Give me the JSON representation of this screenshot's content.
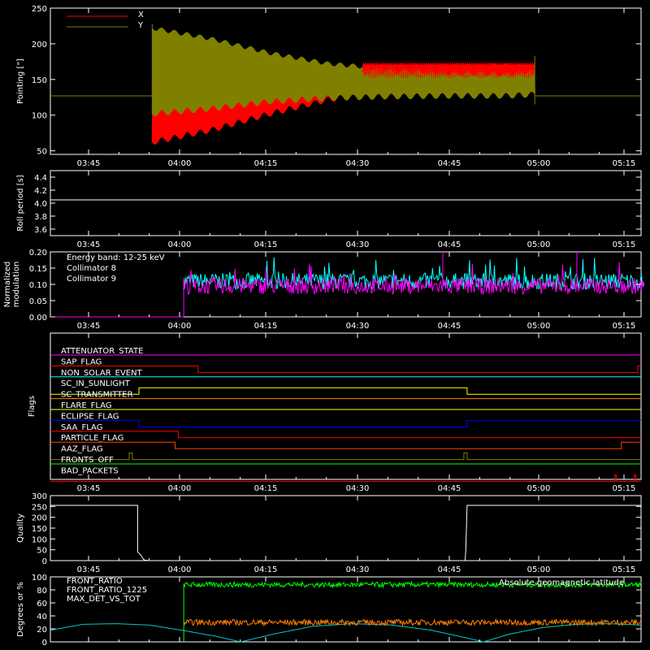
{
  "chart_data": [
    {
      "id": "pointing",
      "type": "line",
      "ylabel": "Pointing [\"]",
      "ylim": [
        45,
        250
      ],
      "yticks": [
        50,
        100,
        150,
        200,
        250
      ],
      "xlim_minutes": [
        3.2,
        79.5
      ],
      "xticks": [
        "03:45",
        "04:00",
        "04:15",
        "04:30",
        "04:45",
        "05:00",
        "05:15"
      ],
      "legend_position": "top-left",
      "series": [
        {
          "name": "X",
          "color": "#ff0000",
          "baseline": 127,
          "active": [
            "03:55",
            "05:00"
          ],
          "envelope_min": [
            [
              0,
              58
            ],
            [
              10,
              75
            ],
            [
              20,
              98
            ],
            [
              30,
              118
            ],
            [
              40,
              130
            ],
            [
              50,
              133
            ],
            [
              60,
              128
            ],
            [
              65,
              126
            ]
          ],
          "envelope_max": [
            [
              0,
              140
            ],
            [
              10,
              145
            ],
            [
              20,
              155
            ],
            [
              30,
              165
            ],
            [
              40,
              170
            ],
            [
              50,
              172
            ],
            [
              60,
              172
            ],
            [
              65,
              170
            ]
          ]
        },
        {
          "name": "Y",
          "color": "#808000",
          "baseline": 127,
          "active": [
            "03:55",
            "05:00"
          ],
          "envelope_min": [
            [
              0,
              98
            ],
            [
              10,
              105
            ],
            [
              20,
              115
            ],
            [
              30,
              120
            ],
            [
              40,
              122
            ],
            [
              50,
              123
            ],
            [
              60,
              123
            ],
            [
              65,
              125
            ]
          ],
          "envelope_max": [
            [
              0,
              225
            ],
            [
              10,
              210
            ],
            [
              20,
              190
            ],
            [
              30,
              175
            ],
            [
              40,
              168
            ],
            [
              50,
              162
            ],
            [
              60,
              160
            ],
            [
              65,
              165
            ]
          ]
        }
      ]
    },
    {
      "id": "roll",
      "type": "line",
      "ylabel": "Roll period [s]",
      "ylim": [
        3.5,
        4.5
      ],
      "yticks": [
        "3.6",
        "3.8",
        "4.0",
        "4.2",
        "4.4"
      ],
      "xticks": [
        "03:45",
        "04:00",
        "04:15",
        "04:30",
        "04:45",
        "05:00",
        "05:15"
      ],
      "series": [
        {
          "name": "",
          "color": "#ffffff",
          "values_constant": 4.05
        }
      ]
    },
    {
      "id": "modulation",
      "type": "line",
      "ylabel_line1": "Normalized",
      "ylabel_line2": "modulation",
      "ylim": [
        0,
        0.2
      ],
      "yticks": [
        "0.00",
        "0.05",
        "0.10",
        "0.15",
        "0.20"
      ],
      "xticks": [
        "03:45",
        "04:00",
        "04:15",
        "04:30",
        "04:45",
        "05:00",
        "05:15"
      ],
      "annotation": "Energy band: 12-25 keV",
      "series": [
        {
          "name": "Collimator 8",
          "color": "#00ffff",
          "mean": 0.11,
          "active": [
            "04:01",
            "05:17"
          ]
        },
        {
          "name": "Collimator 9",
          "color": "#ff00ff",
          "mean": 0.095,
          "active": [
            "04:01",
            "05:17"
          ]
        }
      ]
    },
    {
      "id": "flags",
      "type": "line",
      "ylabel": "Flags",
      "xticks": [
        "03:45",
        "04:00",
        "04:15",
        "04:30",
        "04:45",
        "05:00",
        "05:15"
      ],
      "series": [
        {
          "name": "ATTENUATOR_STATE",
          "color": "#ff00ff",
          "transitions": []
        },
        {
          "name": "SAP_FLAG",
          "color": "#ff0000",
          "transitions": [
            [
              0,
              1
            ],
            [
              22.5,
              0
            ],
            [
              89.5,
              1
            ]
          ]
        },
        {
          "name": "NON_SOLAR_EVENT",
          "color": "#00ffff",
          "transitions": []
        },
        {
          "name": "SC_IN_SUNLIGHT",
          "color": "#ffff00",
          "transitions": [
            [
              0,
              0
            ],
            [
              13.5,
              1
            ],
            [
              63.5,
              0
            ]
          ]
        },
        {
          "name": "SC_TRANSMITTER",
          "color": "#ff8000",
          "transitions": []
        },
        {
          "name": "FLARE_FLAG",
          "color": "#ffff00",
          "transitions": []
        },
        {
          "name": "ECLIPSE_FLAG",
          "color": "#0000ff",
          "transitions": [
            [
              0,
              1
            ],
            [
              13.5,
              0
            ],
            [
              63.5,
              1
            ]
          ]
        },
        {
          "name": "SAA_FLAG",
          "color": "#ff0000",
          "transitions": [
            [
              0,
              1
            ],
            [
              19.5,
              0
            ]
          ]
        },
        {
          "name": "PARTICLE_FLAG",
          "color": "#ff4000",
          "transitions": [
            [
              0,
              1
            ],
            [
              19.0,
              0
            ],
            [
              87.0,
              1
            ]
          ]
        },
        {
          "name": "AAZ_FLAG",
          "color": "#808000",
          "transitions": [
            [
              0,
              0
            ],
            [
              12.0,
              1
            ],
            [
              12.5,
              0
            ],
            [
              63.0,
              1
            ],
            [
              63.5,
              0
            ]
          ]
        },
        {
          "name": "FRONTS_OFF",
          "color": "#00ff00",
          "transitions": []
        },
        {
          "name": "BAD_PACKETS",
          "color": "#ff0000",
          "transitions": [
            [
              0,
              0
            ],
            [
              86.0,
              1
            ],
            [
              86.2,
              0
            ],
            [
              89.0,
              1
            ],
            [
              89.2,
              0
            ]
          ]
        }
      ]
    },
    {
      "id": "quality",
      "type": "line",
      "ylabel": "Quality",
      "ylim": [
        0,
        300
      ],
      "yticks": [
        "0",
        "50",
        "100",
        "150",
        "200",
        "250",
        "300"
      ],
      "xticks": [
        "03:45",
        "04:00",
        "04:15",
        "04:30",
        "04:45",
        "05:00",
        "05:15"
      ],
      "series": [
        {
          "name": "",
          "color": "#ffffff",
          "points": [
            [
              0,
              255
            ],
            [
              13.3,
              255
            ],
            [
              13.3,
              40
            ],
            [
              13.8,
              25
            ],
            [
              14.2,
              5
            ],
            [
              14.5,
              2
            ],
            [
              15,
              0
            ],
            [
              63.2,
              0
            ],
            [
              63.3,
              50
            ],
            [
              63.5,
              255
            ],
            [
              90,
              255
            ]
          ]
        }
      ]
    },
    {
      "id": "front_ratio",
      "type": "line",
      "ylabel": "Degrees or %",
      "ylim": [
        0,
        100
      ],
      "yticks": [
        "0",
        "20",
        "40",
        "60",
        "80",
        "100"
      ],
      "annotation_right": "Absolute geomagnetic latitude",
      "series": [
        {
          "name": "FRONT_RATIO",
          "color": "#ffff00",
          "active": []
        },
        {
          "name": "FRONT_RATIO_1225",
          "color": "#00ff00",
          "mean": 88,
          "active": [
            "04:01",
            "05:17"
          ]
        },
        {
          "name": "MAX_DET_VS_TOT",
          "color": "#ff8000",
          "mean": 30,
          "active": [
            "04:01",
            "05:17"
          ]
        },
        {
          "name": "",
          "color": "#00c8c8",
          "latitude_points": [
            [
              0,
              18
            ],
            [
              5,
              27
            ],
            [
              10,
              28
            ],
            [
              15,
              26
            ],
            [
              20,
              18
            ],
            [
              25,
              9
            ],
            [
              29,
              0
            ],
            [
              34,
              12
            ],
            [
              40,
              24
            ],
            [
              46,
              28
            ],
            [
              52,
              26
            ],
            [
              58,
              18
            ],
            [
              63,
              7
            ],
            [
              66,
              0
            ],
            [
              70,
              12
            ],
            [
              75,
              22
            ],
            [
              80,
              27
            ],
            [
              85,
              28
            ],
            [
              90,
              26
            ]
          ]
        }
      ]
    }
  ]
}
